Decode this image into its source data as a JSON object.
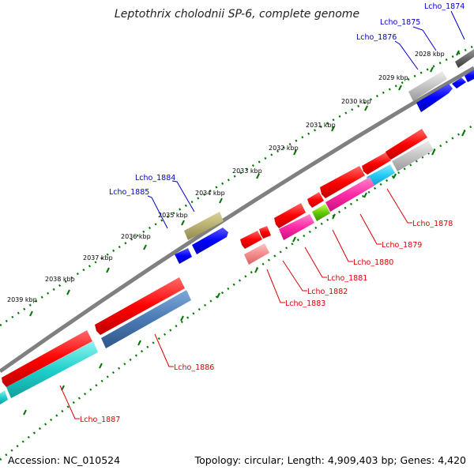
{
  "title": "Leptothrix cholodnii SP-6, complete genome",
  "footer": {
    "accession": "Accession: NC_010524",
    "summary": "Topology: circular; Length: 4,909,403 bp; Genes: 4,420"
  },
  "colors": {
    "label_forward": "#0000cc",
    "label_reverse": "#dd0000",
    "backbone": "#808080",
    "tick_dots": "#007700"
  },
  "scale_ticks": [
    "2028 kbp",
    "2029 kbp",
    "2030 kbp",
    "2031 kbp",
    "2032 kbp",
    "2033 kbp",
    "2034 kbp",
    "2035 kbp",
    "2036 kbp",
    "2037 kbp",
    "2038 kbp",
    "2039 kbp"
  ],
  "gene_labels": {
    "forward": [
      "Lcho_1874",
      "Lcho_1875",
      "Lcho_1876",
      "Lcho_1884",
      "Lcho_1885"
    ],
    "reverse": [
      "Lcho_1878",
      "Lcho_1879",
      "Lcho_1880",
      "Lcho_1881",
      "Lcho_1882",
      "Lcho_1883",
      "Lcho_1886",
      "Lcho_1887"
    ]
  }
}
